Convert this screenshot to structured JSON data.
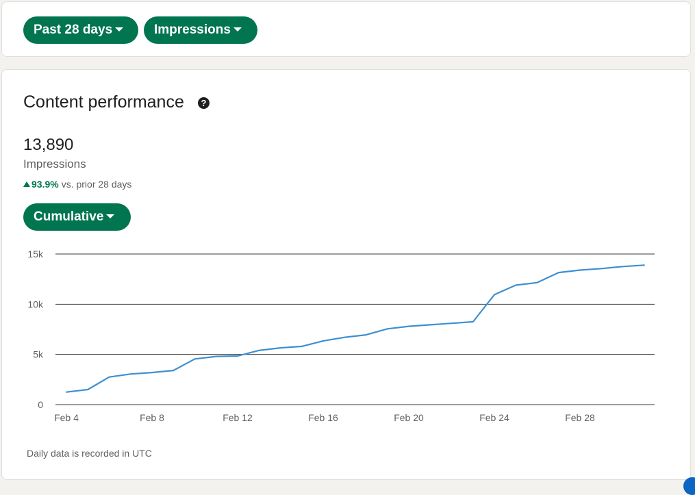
{
  "filters": {
    "range_label": "Past 28 days",
    "metric_label": "Impressions"
  },
  "performance": {
    "title": "Content performance",
    "help_icon": "question-circle-icon",
    "total": "13,890",
    "total_label": "Impressions",
    "change_pct": "93.9%",
    "change_text": "vs. prior 28 days",
    "change_direction": "up",
    "mode_label": "Cumulative",
    "footnote": "Daily data is recorded in UTC"
  },
  "colors": {
    "accent": "#01754f",
    "line": "#3d8fd1",
    "card_bg": "#ffffff",
    "page_bg": "#f3f2ef"
  },
  "chart_data": {
    "type": "line",
    "title": "",
    "xlabel": "",
    "ylabel": "",
    "grid": true,
    "ylim": [
      0,
      15000
    ],
    "yticks": [
      0,
      5000,
      10000,
      15000
    ],
    "ytick_labels": [
      "0",
      "5k",
      "10k",
      "15k"
    ],
    "xtick_labels": [
      "Feb 4",
      "Feb 8",
      "Feb 12",
      "Feb 16",
      "Feb 20",
      "Feb 24",
      "Feb 28"
    ],
    "x": [
      "Feb 4",
      "Feb 5",
      "Feb 6",
      "Feb 7",
      "Feb 8",
      "Feb 9",
      "Feb 10",
      "Feb 11",
      "Feb 12",
      "Feb 13",
      "Feb 14",
      "Feb 15",
      "Feb 16",
      "Feb 17",
      "Feb 18",
      "Feb 19",
      "Feb 20",
      "Feb 21",
      "Feb 22",
      "Feb 23",
      "Feb 24",
      "Feb 25",
      "Feb 26",
      "Feb 27",
      "Feb 28",
      "Feb 29",
      "Mar 1",
      "Mar 2"
    ],
    "series": [
      {
        "values": [
          1250,
          1500,
          2750,
          3050,
          3200,
          3400,
          4550,
          4800,
          4850,
          5400,
          5650,
          5800,
          6350,
          6700,
          6950,
          7550,
          7800,
          7950,
          8100,
          8250,
          10950,
          11900,
          12150,
          13150,
          13400,
          13550,
          13750,
          13890
        ]
      }
    ]
  }
}
